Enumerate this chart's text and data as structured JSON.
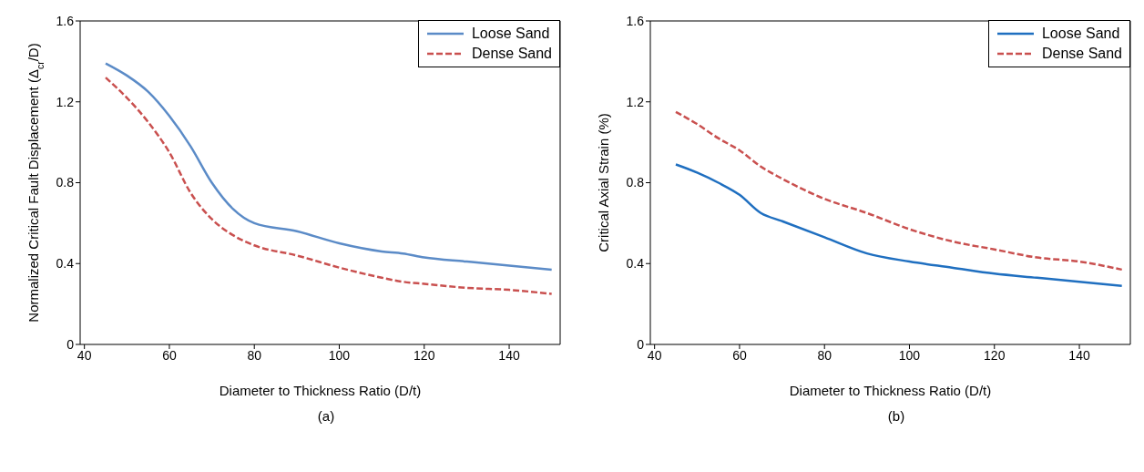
{
  "chart_data": [
    {
      "type": "line",
      "xlabel": "Diameter to Thickness Ratio (D/t)",
      "ylabel": "Normalized Critical Fault Displacement (Δ$_{cr}$/D)",
      "annotations": [
        "(a)"
      ],
      "x": [
        45,
        50,
        55,
        60,
        65,
        70,
        75,
        80,
        90,
        100,
        110,
        115,
        120,
        130,
        140,
        150
      ],
      "series": [
        {
          "name": "Loose Sand",
          "color": "#5b8bc7",
          "line_style": "solid",
          "values": [
            1.39,
            1.33,
            1.25,
            1.13,
            0.98,
            0.8,
            0.67,
            0.6,
            0.56,
            0.5,
            0.46,
            0.45,
            0.43,
            0.41,
            0.39,
            0.37
          ]
        },
        {
          "name": "Dense Sand",
          "color": "#c9504f",
          "line_style": "dashed",
          "values": [
            1.32,
            1.22,
            1.1,
            0.95,
            0.75,
            0.62,
            0.54,
            0.49,
            0.44,
            0.38,
            0.33,
            0.31,
            0.3,
            0.28,
            0.27,
            0.25
          ]
        }
      ],
      "xlim": [
        39,
        152
      ],
      "xticks": [
        40,
        60,
        80,
        100,
        120,
        140
      ],
      "ylim": [
        0,
        1.6
      ],
      "yticks": [
        0,
        0.4,
        0.8,
        1.2,
        1.6
      ],
      "grid": false,
      "legend": "top right",
      "marker": "none"
    },
    {
      "type": "line",
      "xlabel": "Diameter to Thickness Ratio (D/t)",
      "ylabel": "Critical Axial Strain (%)",
      "annotations": [
        "(b)"
      ],
      "x": [
        45,
        50,
        55,
        60,
        65,
        70,
        80,
        90,
        100,
        110,
        120,
        130,
        140,
        150
      ],
      "series": [
        {
          "name": "Loose Sand",
          "color": "#1f6fc0",
          "line_style": "solid",
          "values": [
            0.89,
            0.85,
            0.8,
            0.74,
            0.65,
            0.61,
            0.53,
            0.45,
            0.41,
            0.38,
            0.35,
            0.33,
            0.31,
            0.29
          ]
        },
        {
          "name": "Dense Sand",
          "color": "#c9504f",
          "line_style": "dashed",
          "values": [
            1.15,
            1.09,
            1.02,
            0.96,
            0.88,
            0.82,
            0.72,
            0.65,
            0.57,
            0.51,
            0.47,
            0.43,
            0.41,
            0.37
          ]
        }
      ],
      "xlim": [
        39,
        152
      ],
      "xticks": [
        40,
        60,
        80,
        100,
        120,
        140
      ],
      "ylim": [
        0,
        1.6
      ],
      "yticks": [
        0,
        0.4,
        0.8,
        1.2,
        1.6
      ],
      "grid": false,
      "legend": "top right",
      "marker": "none"
    }
  ]
}
